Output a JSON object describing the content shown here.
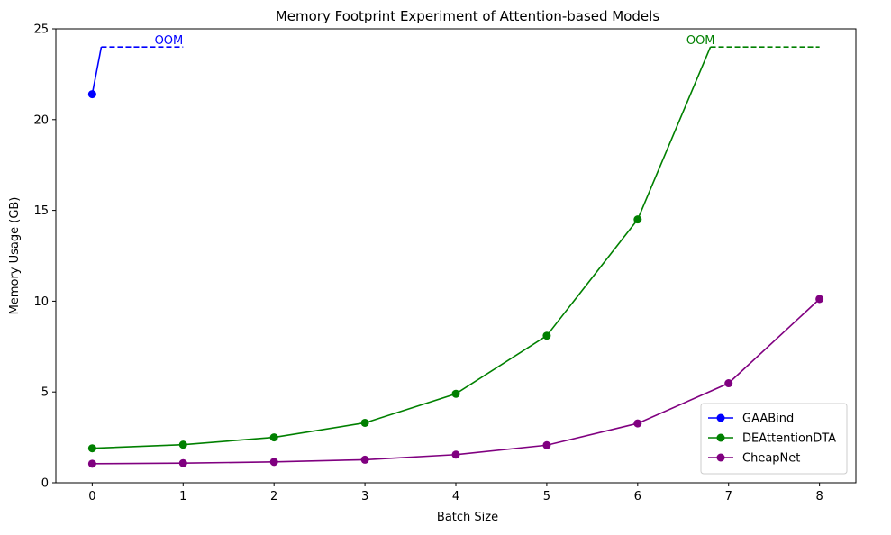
{
  "chart_data": {
    "type": "line",
    "title": "Memory Footprint Experiment of Attention-based Models",
    "xlabel": "Batch Size",
    "ylabel": "Memory Usage (GB)",
    "xlim": [
      -0.4,
      8.4
    ],
    "ylim": [
      0,
      25
    ],
    "xticks": [
      0,
      1,
      2,
      3,
      4,
      5,
      6,
      7,
      8
    ],
    "yticks": [
      0,
      5,
      10,
      15,
      20,
      25
    ],
    "grid": false,
    "legend_position": "lower-right",
    "series": [
      {
        "name": "GAABind",
        "color": "#0000ff",
        "x": [
          0
        ],
        "y": [
          21.4
        ],
        "oom": {
          "label": "OOM",
          "step_to": {
            "x": 0.1,
            "y": 24
          },
          "dashed_from": 0.1,
          "dashed_to": 1.0,
          "value": 24
        }
      },
      {
        "name": "DEAttentionDTA",
        "color": "#008000",
        "x": [
          0,
          1,
          2,
          3,
          4,
          5,
          6
        ],
        "y": [
          1.9,
          2.1,
          2.5,
          3.3,
          4.9,
          8.1,
          14.5
        ],
        "oom": {
          "label": "OOM",
          "step_to": {
            "x": 6.8,
            "y": 24
          },
          "dashed_from": 6.8,
          "dashed_to": 8.0,
          "value": 24
        }
      },
      {
        "name": "CheapNet",
        "color": "#800080",
        "x": [
          0,
          1,
          2,
          3,
          4,
          5,
          6,
          7,
          8
        ],
        "y": [
          1.05,
          1.08,
          1.15,
          1.27,
          1.55,
          2.07,
          3.27,
          5.48,
          10.12
        ]
      }
    ]
  }
}
